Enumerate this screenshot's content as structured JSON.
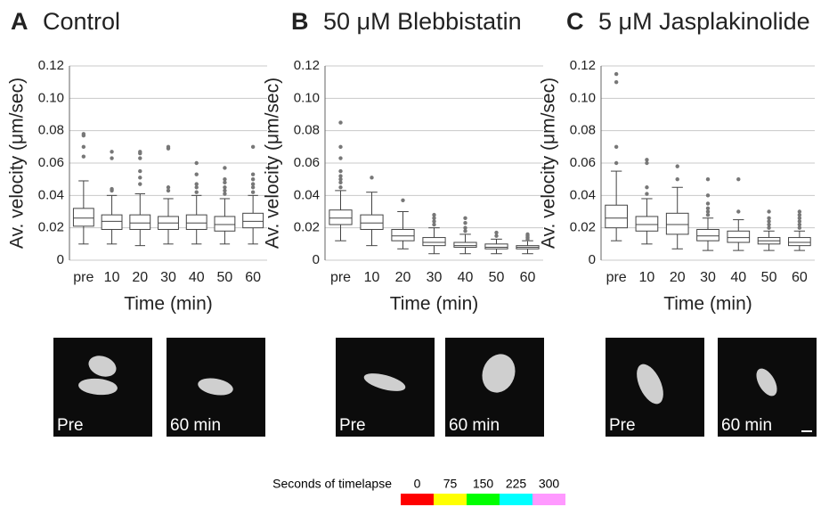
{
  "chart_data": [
    {
      "type": "box",
      "panel": "A",
      "title": "Control",
      "xlabel": "Time (min)",
      "ylabel": "Av. velocity (μm/sec)",
      "categories": [
        "pre",
        "10",
        "20",
        "30",
        "40",
        "50",
        "60"
      ],
      "ylim": [
        0,
        0.12
      ],
      "yticks": [
        0,
        0.02,
        0.04,
        0.06,
        0.08,
        {
          "value": 0.1,
          "label": "0.10"
        },
        0.12
      ],
      "boxes": [
        {
          "whislo": 0.01,
          "q1": 0.021,
          "med": 0.026,
          "q3": 0.032,
          "whishi": 0.049,
          "fliers": [
            0.064,
            0.07,
            0.077,
            0.078
          ]
        },
        {
          "whislo": 0.01,
          "q1": 0.019,
          "med": 0.024,
          "q3": 0.028,
          "whishi": 0.04,
          "fliers": [
            0.043,
            0.044,
            0.063,
            0.067
          ]
        },
        {
          "whislo": 0.009,
          "q1": 0.019,
          "med": 0.023,
          "q3": 0.028,
          "whishi": 0.041,
          "fliers": [
            0.047,
            0.051,
            0.055,
            0.063,
            0.066,
            0.067
          ]
        },
        {
          "whislo": 0.01,
          "q1": 0.019,
          "med": 0.023,
          "q3": 0.027,
          "whishi": 0.038,
          "fliers": [
            0.043,
            0.045,
            0.069,
            0.07
          ]
        },
        {
          "whislo": 0.01,
          "q1": 0.019,
          "med": 0.023,
          "q3": 0.028,
          "whishi": 0.04,
          "fliers": [
            0.042,
            0.045,
            0.047,
            0.053,
            0.06
          ]
        },
        {
          "whislo": 0.01,
          "q1": 0.018,
          "med": 0.022,
          "q3": 0.027,
          "whishi": 0.038,
          "fliers": [
            0.041,
            0.043,
            0.045,
            0.048,
            0.05,
            0.057
          ]
        },
        {
          "whislo": 0.01,
          "q1": 0.02,
          "med": 0.024,
          "q3": 0.029,
          "whishi": 0.04,
          "fliers": [
            0.042,
            0.045,
            0.047,
            0.05,
            0.053,
            0.07
          ]
        }
      ],
      "images": [
        "Pre",
        "60 min"
      ]
    },
    {
      "type": "box",
      "panel": "B",
      "title": "50 μM Blebbistatin",
      "xlabel": "Time (min)",
      "ylabel": "Av. velocity (μm/sec)",
      "categories": [
        "pre",
        "10",
        "20",
        "30",
        "40",
        "50",
        "60"
      ],
      "ylim": [
        0,
        0.12
      ],
      "yticks": [
        0,
        0.02,
        0.04,
        0.06,
        0.08,
        {
          "value": 0.1,
          "label": "0.10"
        },
        0.12
      ],
      "boxes": [
        {
          "whislo": 0.012,
          "q1": 0.022,
          "med": 0.026,
          "q3": 0.031,
          "whishi": 0.043,
          "fliers": [
            0.045,
            0.048,
            0.05,
            0.052,
            0.055,
            0.063,
            0.07,
            0.085
          ]
        },
        {
          "whislo": 0.009,
          "q1": 0.019,
          "med": 0.023,
          "q3": 0.028,
          "whishi": 0.042,
          "fliers": [
            0.051
          ]
        },
        {
          "whislo": 0.007,
          "q1": 0.012,
          "med": 0.015,
          "q3": 0.019,
          "whishi": 0.03,
          "fliers": [
            0.037
          ]
        },
        {
          "whislo": 0.004,
          "q1": 0.009,
          "med": 0.011,
          "q3": 0.014,
          "whishi": 0.02,
          "fliers": [
            0.022,
            0.024,
            0.026,
            0.028
          ]
        },
        {
          "whislo": 0.004,
          "q1": 0.008,
          "med": 0.009,
          "q3": 0.011,
          "whishi": 0.016,
          "fliers": [
            0.018,
            0.02,
            0.023,
            0.026
          ]
        },
        {
          "whislo": 0.004,
          "q1": 0.007,
          "med": 0.008,
          "q3": 0.01,
          "whishi": 0.013,
          "fliers": [
            0.015,
            0.017
          ]
        },
        {
          "whislo": 0.004,
          "q1": 0.007,
          "med": 0.008,
          "q3": 0.009,
          "whishi": 0.012,
          "fliers": [
            0.013,
            0.014,
            0.015,
            0.016
          ]
        }
      ],
      "images": [
        "Pre",
        "60 min"
      ]
    },
    {
      "type": "box",
      "panel": "C",
      "title": "5 μM Jasplakinolide",
      "xlabel": "Time (min)",
      "ylabel": "Av. velocity (μm/sec)",
      "categories": [
        "pre",
        "10",
        "20",
        "30",
        "40",
        "50",
        "60"
      ],
      "ylim": [
        0,
        0.12
      ],
      "yticks": [
        0,
        0.02,
        0.04,
        0.06,
        0.08,
        {
          "value": 0.1,
          "label": "0.10"
        },
        0.12
      ],
      "boxes": [
        {
          "whislo": 0.012,
          "q1": 0.02,
          "med": 0.026,
          "q3": 0.034,
          "whishi": 0.055,
          "fliers": [
            0.06,
            0.07,
            0.11,
            0.115
          ]
        },
        {
          "whislo": 0.01,
          "q1": 0.018,
          "med": 0.022,
          "q3": 0.027,
          "whishi": 0.038,
          "fliers": [
            0.041,
            0.045,
            0.06,
            0.062
          ]
        },
        {
          "whislo": 0.007,
          "q1": 0.016,
          "med": 0.022,
          "q3": 0.029,
          "whishi": 0.045,
          "fliers": [
            0.05,
            0.058
          ]
        },
        {
          "whislo": 0.006,
          "q1": 0.012,
          "med": 0.015,
          "q3": 0.019,
          "whishi": 0.026,
          "fliers": [
            0.028,
            0.03,
            0.032,
            0.035,
            0.04,
            0.05
          ]
        },
        {
          "whislo": 0.006,
          "q1": 0.011,
          "med": 0.014,
          "q3": 0.018,
          "whishi": 0.025,
          "fliers": [
            0.03,
            0.05
          ]
        },
        {
          "whislo": 0.006,
          "q1": 0.01,
          "med": 0.012,
          "q3": 0.014,
          "whishi": 0.018,
          "fliers": [
            0.02,
            0.022,
            0.024,
            0.026,
            0.03
          ]
        },
        {
          "whislo": 0.006,
          "q1": 0.009,
          "med": 0.011,
          "q3": 0.014,
          "whishi": 0.018,
          "fliers": [
            0.02,
            0.022,
            0.024,
            0.026,
            0.028,
            0.03
          ]
        }
      ],
      "images": [
        "Pre",
        "60 min"
      ]
    }
  ],
  "timelapse_legend": {
    "title": "Seconds of timelapse",
    "ticks": [
      0,
      75,
      150,
      225,
      300
    ],
    "colors": [
      "#ff0000",
      "#ffff00",
      "#00ff00",
      "#00ffff",
      "#ff99ff"
    ]
  }
}
